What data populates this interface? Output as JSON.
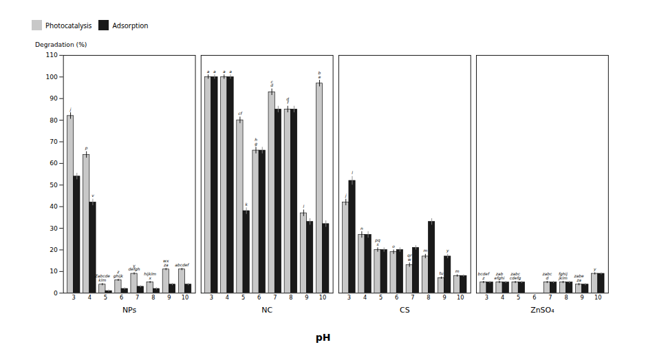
{
  "chart_data": {
    "type": "bar",
    "xlabel": "pH",
    "ylabel": "Degradation (%)",
    "groups": [
      {
        "name": "NPs",
        "categories": [
          "3",
          "4",
          "5",
          "6",
          "7",
          "8",
          "9",
          "10"
        ]
      },
      {
        "name": "NC",
        "categories": [
          "3",
          "4",
          "5",
          "6",
          "7",
          "8",
          "9",
          "10"
        ]
      },
      {
        "name": "CS",
        "categories": [
          "3",
          "4",
          "5",
          "6",
          "7",
          "8",
          "9",
          "10"
        ]
      },
      {
        "name": "ZnSO₄",
        "categories": [
          "3",
          "4",
          "5",
          "6",
          "7",
          "8",
          "9",
          "10"
        ]
      }
    ],
    "series": [
      {
        "name": "Photocatalysis",
        "color": "#c8c8c8",
        "values": [
          82,
          64,
          4,
          6,
          9,
          5,
          11,
          11,
          100,
          100,
          80,
          66,
          93,
          85,
          37,
          97,
          42,
          27,
          20,
          19,
          13,
          17,
          7,
          8,
          5,
          5,
          5,
          0,
          5,
          5,
          4,
          9
        ],
        "errors": [
          1.5,
          1.5,
          0.5,
          0.5,
          0.5,
          0.5,
          0.5,
          0.5,
          1.0,
          1.0,
          1.5,
          1.5,
          1.5,
          1.5,
          1.5,
          1.5,
          1.5,
          1.5,
          1.0,
          1.0,
          1.0,
          1.0,
          0.5,
          0.5,
          0.5,
          0.5,
          0.5,
          0.0,
          0.5,
          0.5,
          0.5,
          0.5
        ],
        "labels": [
          "j",
          "p",
          "Zabcde\nklm",
          "z\nghijk",
          "y\ndefgh",
          "hijklm\nx",
          "wx\nza",
          "abcdef",
          "a",
          "a",
          "cf",
          "h\ng",
          "c\nd",
          "d\nf",
          "l",
          "b\ne",
          "j",
          "n",
          "pq\ns",
          "o",
          "qr\nw",
          "m",
          "tu",
          "m",
          "bcdef\nz",
          "zab\nefghi",
          "zabc\ncdefg",
          null,
          "zabc\nd",
          "fghij\njklm",
          "zabe\nza",
          "y"
        ]
      },
      {
        "name": "Adsorption",
        "color": "#1a1a1a",
        "values": [
          54,
          42,
          1,
          2,
          3,
          2,
          4,
          4,
          100,
          100,
          38,
          66,
          85,
          85,
          33,
          32,
          52,
          27,
          20,
          20,
          21,
          33,
          17,
          8,
          5,
          5,
          5,
          0,
          5,
          5,
          4,
          9
        ],
        "errors": [
          1.5,
          1.5,
          0.5,
          0.5,
          0.5,
          0.5,
          0.5,
          0.5,
          1.0,
          1.0,
          1.5,
          1.5,
          1.5,
          1.5,
          1.5,
          1.5,
          2.0,
          1.5,
          1.0,
          1.0,
          1.0,
          1.5,
          1.0,
          0.5,
          0.5,
          0.5,
          0.5,
          0.0,
          0.5,
          0.5,
          0.5,
          0.5
        ],
        "labels": [
          null,
          "v",
          null,
          null,
          null,
          null,
          null,
          null,
          "a",
          "a",
          "k",
          null,
          null,
          null,
          null,
          null,
          "l",
          null,
          null,
          null,
          null,
          null,
          "y",
          null,
          null,
          null,
          null,
          null,
          null,
          null,
          null,
          null
        ]
      }
    ],
    "ylim": [
      0,
      110
    ],
    "yticks": [
      0,
      10,
      20,
      30,
      40,
      50,
      60,
      70,
      80,
      90,
      100,
      110
    ]
  }
}
